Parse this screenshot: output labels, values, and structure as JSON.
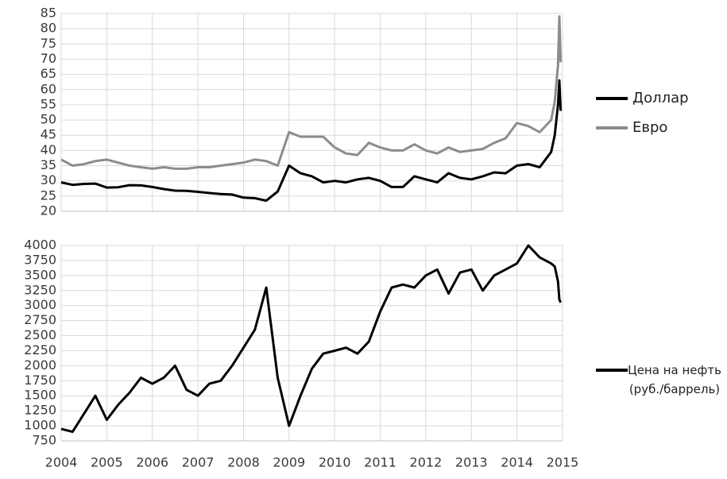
{
  "chart_data": [
    {
      "type": "line",
      "x": [
        2004,
        2004.25,
        2004.5,
        2004.75,
        2005,
        2005.25,
        2005.5,
        2005.75,
        2006,
        2006.25,
        2006.5,
        2006.75,
        2007,
        2007.25,
        2007.5,
        2007.75,
        2008,
        2008.25,
        2008.5,
        2008.75,
        2009,
        2009.25,
        2009.5,
        2009.75,
        2010,
        2010.25,
        2010.5,
        2010.75,
        2011,
        2011.25,
        2011.5,
        2011.75,
        2012,
        2012.25,
        2012.5,
        2012.75,
        2013,
        2013.25,
        2013.5,
        2013.75,
        2014,
        2014.25,
        2014.5,
        2014.75,
        2014.83,
        2014.9,
        2014.93,
        2014.96
      ],
      "series": [
        {
          "name": "Доллар",
          "color": "#000000",
          "values": [
            29.5,
            28.7,
            29.0,
            29.1,
            27.8,
            27.9,
            28.6,
            28.5,
            28.0,
            27.3,
            26.8,
            26.7,
            26.4,
            26.0,
            25.7,
            25.5,
            24.5,
            24.3,
            23.5,
            26.5,
            35,
            32.5,
            31.5,
            29.5,
            30,
            29.5,
            30.5,
            31,
            30,
            28,
            28,
            31.5,
            30.5,
            29.5,
            32.5,
            31,
            30.5,
            31.5,
            32.8,
            32.5,
            35,
            35.5,
            34.5,
            39.5,
            45,
            55,
            63,
            53
          ]
        },
        {
          "name": "Евро",
          "color": "#8c8c8c",
          "values": [
            37,
            35,
            35.5,
            36.5,
            37,
            36,
            35,
            34.5,
            34,
            34.5,
            34,
            34,
            34.5,
            34.5,
            35,
            35.5,
            36,
            37,
            36.5,
            35,
            46,
            44.5,
            44.5,
            44.5,
            41,
            39,
            38.5,
            42.5,
            41,
            40,
            40,
            42,
            40,
            39,
            41,
            39.5,
            40,
            40.5,
            42.5,
            44,
            49,
            48,
            46,
            50,
            56,
            68,
            84,
            69
          ]
        }
      ],
      "xlim": [
        2004,
        2015
      ],
      "xticks": [
        2004,
        2005,
        2006,
        2007,
        2008,
        2009,
        2010,
        2011,
        2012,
        2013,
        2014,
        2015
      ],
      "ylim": [
        20,
        85
      ],
      "yticks": [
        20,
        25,
        30,
        35,
        40,
        45,
        50,
        55,
        60,
        65,
        70,
        75,
        80,
        85
      ],
      "grid": true,
      "legend": "right"
    },
    {
      "type": "line",
      "x": [
        2004,
        2004.25,
        2004.5,
        2004.75,
        2005,
        2005.25,
        2005.5,
        2005.75,
        2006,
        2006.25,
        2006.5,
        2006.75,
        2007,
        2007.25,
        2007.5,
        2007.75,
        2008,
        2008.25,
        2008.5,
        2008.75,
        2009,
        2009.25,
        2009.5,
        2009.75,
        2010,
        2010.25,
        2010.5,
        2010.75,
        2011,
        2011.25,
        2011.5,
        2011.75,
        2012,
        2012.25,
        2012.5,
        2012.75,
        2013,
        2013.25,
        2013.5,
        2013.75,
        2014,
        2014.25,
        2014.5,
        2014.75,
        2014.83,
        2014.9,
        2014.93,
        2014.96
      ],
      "series": [
        {
          "name": "Цена на нефть (руб./баррель)",
          "color": "#000000",
          "values": [
            950,
            900,
            1200,
            1500,
            1100,
            1350,
            1550,
            1800,
            1700,
            1800,
            2000,
            1600,
            1500,
            1700,
            1750,
            2000,
            2300,
            2600,
            3300,
            1800,
            1000,
            1500,
            1950,
            2200,
            2250,
            2300,
            2200,
            2400,
            2900,
            3300,
            3350,
            3300,
            3500,
            3600,
            3200,
            3550,
            3600,
            3250,
            3500,
            3600,
            3700,
            4000,
            3800,
            3700,
            3650,
            3400,
            3100,
            3050
          ]
        }
      ],
      "xlim": [
        2004,
        2015
      ],
      "xticks": [
        2004,
        2005,
        2006,
        2007,
        2008,
        2009,
        2010,
        2011,
        2012,
        2013,
        2014,
        2015
      ],
      "ylim": [
        750,
        4000
      ],
      "yticks": [
        750,
        1000,
        1250,
        1500,
        1750,
        2000,
        2250,
        2500,
        2750,
        3000,
        3250,
        3500,
        3750,
        4000
      ],
      "grid": true,
      "legend": "right"
    }
  ]
}
